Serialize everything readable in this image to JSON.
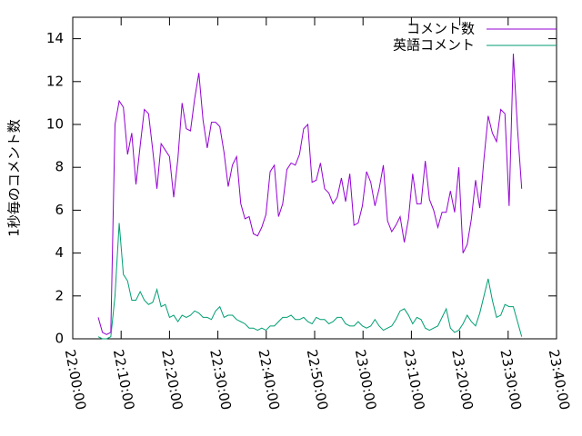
{
  "chart_data": {
    "type": "line",
    "ylabel": "1秒毎のコメント数",
    "x": [
      "22:05:16",
      "22:06:08",
      "22:07:00",
      "22:07:52",
      "22:08:44",
      "22:09:36",
      "22:10:28",
      "22:11:20",
      "22:12:12",
      "22:13:04",
      "22:13:56",
      "22:14:48",
      "22:15:40",
      "22:16:32",
      "22:17:24",
      "22:18:16",
      "22:19:08",
      "22:20:00",
      "22:20:52",
      "22:21:44",
      "22:22:36",
      "22:23:28",
      "22:24:20",
      "22:25:12",
      "22:26:04",
      "22:26:56",
      "22:27:48",
      "22:28:40",
      "22:29:32",
      "22:30:24",
      "22:31:16",
      "22:32:08",
      "22:33:00",
      "22:33:52",
      "22:34:44",
      "22:35:36",
      "22:36:28",
      "22:37:20",
      "22:38:12",
      "22:39:04",
      "22:39:56",
      "22:40:48",
      "22:41:40",
      "22:42:32",
      "22:43:24",
      "22:44:16",
      "22:45:08",
      "22:46:00",
      "22:46:52",
      "22:47:44",
      "22:48:36",
      "22:49:28",
      "22:50:20",
      "22:51:12",
      "22:52:04",
      "22:52:56",
      "22:53:48",
      "22:54:40",
      "22:55:32",
      "22:56:24",
      "22:57:16",
      "22:58:08",
      "22:59:00",
      "22:59:52",
      "23:00:44",
      "23:01:36",
      "23:02:28",
      "23:03:20",
      "23:04:12",
      "23:05:04",
      "23:05:56",
      "23:06:48",
      "23:07:40",
      "23:08:32",
      "23:09:24",
      "23:10:16",
      "23:11:08",
      "23:12:00",
      "23:12:52",
      "23:13:44",
      "23:14:36",
      "23:15:28",
      "23:16:20",
      "23:17:12",
      "23:18:04",
      "23:18:56",
      "23:19:48",
      "23:20:40",
      "23:21:32",
      "23:22:24",
      "23:23:16",
      "23:24:08",
      "23:25:00",
      "23:25:52",
      "23:26:44",
      "23:27:36",
      "23:28:28",
      "23:29:20",
      "23:30:12",
      "23:31:04",
      "23:31:56",
      "23:32:48"
    ],
    "series": [
      {
        "name": "コメント数",
        "color": "#9400d3",
        "values": [
          1.0,
          0.3,
          0.2,
          0.3,
          10.0,
          11.1,
          10.8,
          8.6,
          9.6,
          7.2,
          9.0,
          10.7,
          10.5,
          8.8,
          7.0,
          9.1,
          8.8,
          8.5,
          6.6,
          8.4,
          11.0,
          9.8,
          9.7,
          11.2,
          12.4,
          10.2,
          8.9,
          10.1,
          10.1,
          9.9,
          8.7,
          7.1,
          8.1,
          8.5,
          6.3,
          5.6,
          5.7,
          4.9,
          4.8,
          5.2,
          5.8,
          7.8,
          8.1,
          5.7,
          6.3,
          7.9,
          8.2,
          8.1,
          8.6,
          9.8,
          10.0,
          7.3,
          7.4,
          8.2,
          7.0,
          6.8,
          6.3,
          6.6,
          7.5,
          6.4,
          7.7,
          5.3,
          5.4,
          6.2,
          7.8,
          7.3,
          6.2,
          7.0,
          8.1,
          5.5,
          5.0,
          5.3,
          5.7,
          4.5,
          5.6,
          7.7,
          6.3,
          6.3,
          8.3,
          6.5,
          6.0,
          5.2,
          5.9,
          5.9,
          6.9,
          5.9,
          8.0,
          4.0,
          4.4,
          5.6,
          7.4,
          6.1,
          8.4,
          10.4,
          9.6,
          9.2,
          10.7,
          10.5,
          6.2,
          13.3,
          9.8,
          7.0
        ]
      },
      {
        "name": "英語コメント",
        "color": "#009e73",
        "values": [
          0.1,
          0.0,
          0.0,
          0.1,
          2.0,
          5.4,
          3.0,
          2.7,
          1.8,
          1.8,
          2.2,
          1.8,
          1.6,
          1.7,
          2.3,
          1.5,
          1.6,
          1.0,
          1.1,
          0.8,
          1.1,
          1.0,
          1.1,
          1.3,
          1.2,
          1.0,
          1.0,
          0.9,
          1.3,
          1.5,
          1.0,
          1.1,
          1.1,
          0.9,
          0.8,
          0.7,
          0.5,
          0.5,
          0.4,
          0.5,
          0.4,
          0.6,
          0.6,
          0.8,
          1.0,
          1.0,
          1.1,
          0.9,
          0.9,
          1.0,
          0.8,
          0.7,
          1.0,
          0.9,
          0.9,
          0.7,
          0.8,
          1.0,
          1.0,
          0.7,
          0.6,
          0.6,
          0.8,
          0.6,
          0.5,
          0.6,
          0.9,
          0.6,
          0.4,
          0.5,
          0.6,
          0.9,
          1.3,
          1.4,
          1.1,
          0.7,
          1.0,
          0.9,
          0.5,
          0.4,
          0.5,
          0.6,
          1.0,
          1.4,
          0.5,
          0.3,
          0.4,
          0.7,
          1.1,
          0.8,
          0.6,
          1.2,
          2.0,
          2.8,
          1.8,
          1.0,
          1.1,
          1.6,
          1.5,
          1.5,
          0.8,
          0.1
        ]
      }
    ],
    "xlim": [
      "22:00:00",
      "23:40:00"
    ],
    "xticks": [
      "22:00:00",
      "22:10:00",
      "22:20:00",
      "22:30:00",
      "22:40:00",
      "22:50:00",
      "23:00:00",
      "23:10:00",
      "23:20:00",
      "23:30:00",
      "23:40:00"
    ],
    "ylim": [
      0,
      15
    ],
    "yticks": [
      0,
      2,
      4,
      6,
      8,
      10,
      12,
      14
    ],
    "legend": "top-right"
  }
}
